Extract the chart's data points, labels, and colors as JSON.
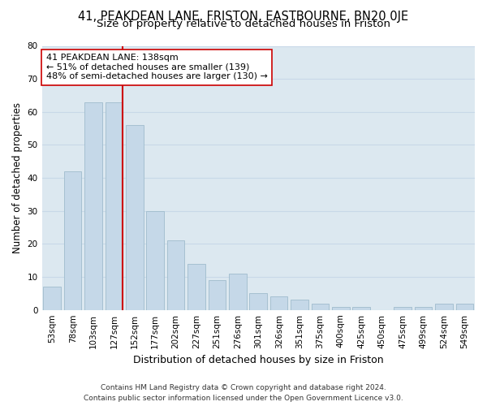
{
  "title1": "41, PEAKDEAN LANE, FRISTON, EASTBOURNE, BN20 0JE",
  "title2": "Size of property relative to detached houses in Friston",
  "xlabel": "Distribution of detached houses by size in Friston",
  "ylabel": "Number of detached properties",
  "categories": [
    "53sqm",
    "78sqm",
    "103sqm",
    "127sqm",
    "152sqm",
    "177sqm",
    "202sqm",
    "227sqm",
    "251sqm",
    "276sqm",
    "301sqm",
    "326sqm",
    "351sqm",
    "375sqm",
    "400sqm",
    "425sqm",
    "450sqm",
    "475sqm",
    "499sqm",
    "524sqm",
    "549sqm"
  ],
  "values": [
    7,
    42,
    63,
    63,
    56,
    30,
    21,
    14,
    9,
    11,
    5,
    4,
    3,
    2,
    1,
    1,
    0,
    1,
    1,
    2,
    2
  ],
  "bar_color": "#c5d8e8",
  "bar_edgecolor": "#9fbccc",
  "vline_color": "#cc0000",
  "annotation_text": "41 PEAKDEAN LANE: 138sqm\n← 51% of detached houses are smaller (139)\n48% of semi-detached houses are larger (130) →",
  "annotation_box_facecolor": "#ffffff",
  "annotation_box_edgecolor": "#cc0000",
  "ylim": [
    0,
    80
  ],
  "yticks": [
    0,
    10,
    20,
    30,
    40,
    50,
    60,
    70,
    80
  ],
  "grid_color": "#c8d8e8",
  "background_color": "#dce8f0",
  "footer": "Contains HM Land Registry data © Crown copyright and database right 2024.\nContains public sector information licensed under the Open Government Licence v3.0.",
  "title1_fontsize": 10.5,
  "title2_fontsize": 9.5,
  "xlabel_fontsize": 9,
  "ylabel_fontsize": 8.5,
  "tick_fontsize": 7.5,
  "annotation_fontsize": 8,
  "footer_fontsize": 6.5,
  "vline_bar_index": 3
}
